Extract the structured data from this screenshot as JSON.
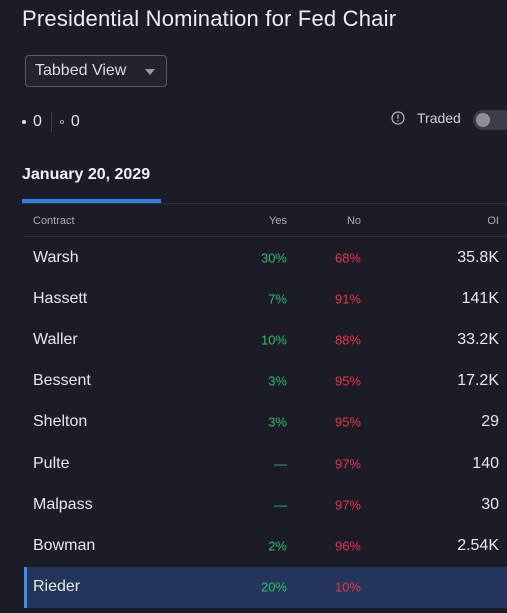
{
  "title": "Presidential Nomination for Fed Chair",
  "view_select": {
    "value": "Tabbed View"
  },
  "counts": {
    "first": "0",
    "second": "0"
  },
  "traded": {
    "label": "Traded",
    "toggle_on": false
  },
  "tabs": [
    {
      "label": "January 20, 2029",
      "active": true
    }
  ],
  "table": {
    "headers": {
      "contract": "Contract",
      "yes": "Yes",
      "no": "No",
      "oi": "OI"
    },
    "rows": [
      {
        "name": "Warsh",
        "yes": "30%",
        "no": "68%",
        "oi": "35.8K"
      },
      {
        "name": "Hassett",
        "yes": "7%",
        "no": "91%",
        "oi": "141K"
      },
      {
        "name": "Waller",
        "yes": "10%",
        "no": "88%",
        "oi": "33.2K"
      },
      {
        "name": "Bessent",
        "yes": "3%",
        "no": "95%",
        "oi": "17.2K"
      },
      {
        "name": "Shelton",
        "yes": "3%",
        "no": "95%",
        "oi": "29"
      },
      {
        "name": "Pulte",
        "yes": "—",
        "no": "97%",
        "oi": "140"
      },
      {
        "name": "Malpass",
        "yes": "—",
        "no": "97%",
        "oi": "30"
      },
      {
        "name": "Bowman",
        "yes": "2%",
        "no": "96%",
        "oi": "2.54K"
      },
      {
        "name": "Rieder",
        "yes": "20%",
        "no": "10%",
        "oi": ""
      }
    ]
  },
  "colors": {
    "background": "#1b1c26",
    "yes": "#2bbf6a",
    "no": "#e8344b",
    "accent": "#2f7fe0",
    "highlight_row": "#23355a"
  }
}
